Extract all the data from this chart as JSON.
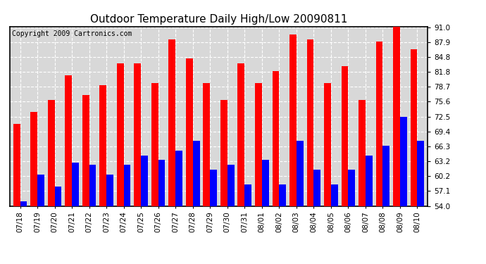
{
  "title": "Outdoor Temperature Daily High/Low 20090811",
  "copyright": "Copyright 2009 Cartronics.com",
  "categories": [
    "07/18",
    "07/19",
    "07/20",
    "07/21",
    "07/22",
    "07/23",
    "07/24",
    "07/25",
    "07/26",
    "07/27",
    "07/28",
    "07/29",
    "07/30",
    "07/31",
    "08/01",
    "08/02",
    "08/03",
    "08/04",
    "08/05",
    "08/06",
    "08/07",
    "08/08",
    "08/09",
    "08/10"
  ],
  "highs": [
    71.0,
    73.5,
    76.0,
    81.0,
    77.0,
    79.0,
    83.5,
    83.5,
    79.5,
    88.5,
    84.5,
    79.5,
    76.0,
    83.5,
    79.5,
    82.0,
    89.5,
    88.5,
    79.5,
    83.0,
    76.0,
    88.0,
    91.5,
    86.5
  ],
  "lows": [
    55.0,
    60.5,
    58.0,
    63.0,
    62.5,
    60.5,
    62.5,
    64.5,
    63.5,
    65.5,
    67.5,
    61.5,
    62.5,
    58.5,
    63.5,
    58.5,
    67.5,
    61.5,
    58.5,
    61.5,
    64.5,
    66.5,
    72.5,
    67.5
  ],
  "high_color": "#ff0000",
  "low_color": "#0000ff",
  "bg_color": "#ffffff",
  "plot_bg_color": "#d8d8d8",
  "grid_color": "#ffffff",
  "ymin": 54.0,
  "ymax": 91.0,
  "yticks": [
    54.0,
    57.1,
    60.2,
    63.2,
    66.3,
    69.4,
    72.5,
    75.6,
    78.7,
    81.8,
    84.8,
    87.9,
    91.0
  ],
  "title_fontsize": 11,
  "copyright_fontsize": 7,
  "tick_fontsize": 7.5,
  "bar_width": 0.4
}
